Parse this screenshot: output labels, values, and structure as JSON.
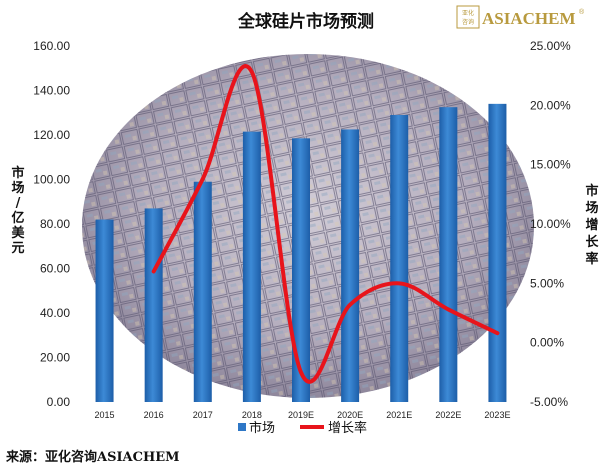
{
  "logo": {
    "seal": [
      "亚化",
      "咨询"
    ],
    "brand": "ASIACHEM",
    "trademark": "®"
  },
  "source": "来源：亚化咨询ASIACHEM",
  "colors": {
    "bar": "#2e77c6",
    "bar_dark": "#1d5ea8",
    "line": "#e8141b",
    "logo": "#b89a3e"
  },
  "chart_data": {
    "type": "bar+line",
    "title": "全球硅片市场预测",
    "categories": [
      "2015",
      "2016",
      "2017",
      "2018",
      "2019E",
      "2020E",
      "2021E",
      "2022E",
      "2023E"
    ],
    "series": [
      {
        "name": "市场",
        "type": "bar",
        "axis": "left",
        "values": [
          82,
          87,
          99,
          121.5,
          118.5,
          122.5,
          129,
          132.5,
          134
        ]
      },
      {
        "name": "增长率",
        "type": "line",
        "axis": "right",
        "values": [
          null,
          6.0,
          13.8,
          22.8,
          -2.5,
          3.2,
          5.0,
          2.8,
          0.8
        ]
      }
    ],
    "ylabel_left": "市场/亿美元",
    "ylabel_right": "市场增长率",
    "ylim_left": [
      0,
      160
    ],
    "yticks_left": [
      "0.00",
      "20.00",
      "40.00",
      "60.00",
      "80.00",
      "100.00",
      "120.00",
      "140.00",
      "160.00"
    ],
    "ylim_right": [
      -5,
      25
    ],
    "yticks_right": [
      "-5.00%",
      "0.00%",
      "5.00%",
      "10.00%",
      "15.00%",
      "20.00%",
      "25.00%"
    ],
    "legend": "bottom",
    "grid": false,
    "background_image": "silicon-wafer"
  }
}
